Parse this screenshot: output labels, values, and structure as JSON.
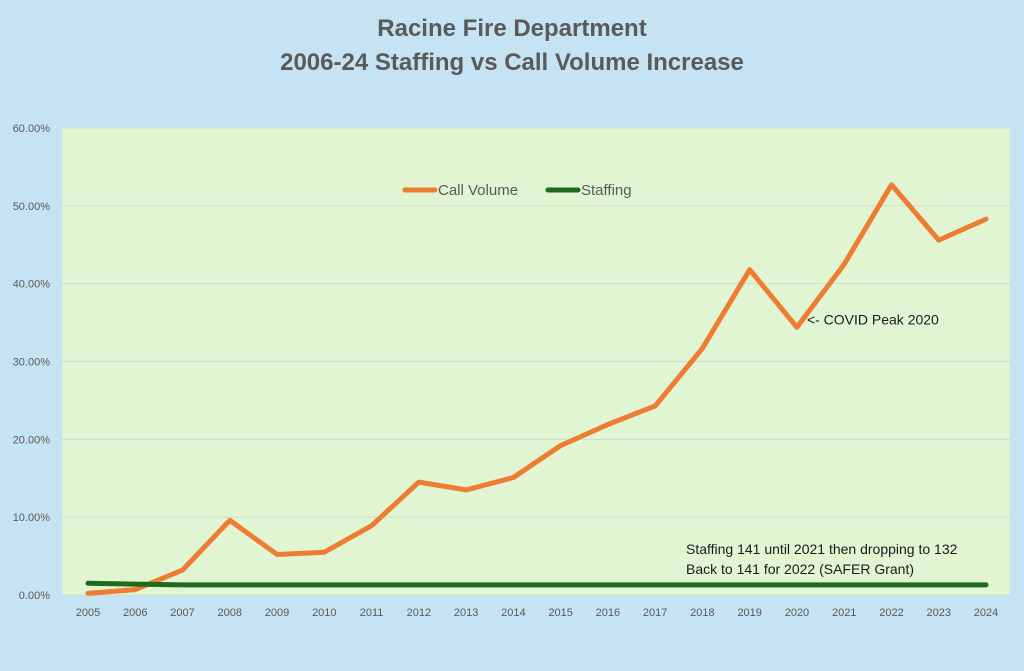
{
  "chart_data": {
    "type": "line",
    "title": "Racine Fire Department",
    "subtitle": "2006-24 Staffing vs Call Volume Increase",
    "x": [
      "2005",
      "2006",
      "2007",
      "2008",
      "2009",
      "2010",
      "2011",
      "2012",
      "2013",
      "2014",
      "2015",
      "2016",
      "2017",
      "2018",
      "2019",
      "2020",
      "2021",
      "2022",
      "2023",
      "2024"
    ],
    "series": [
      {
        "name": "Call Volume",
        "color": "#ed7d31",
        "values": [
          0.2,
          0.7,
          3.2,
          9.6,
          5.2,
          5.5,
          8.9,
          14.5,
          13.5,
          15.1,
          19.2,
          21.9,
          24.3,
          31.7,
          41.8,
          34.4,
          42.5,
          52.7,
          45.6,
          48.3
        ]
      },
      {
        "name": "Staffing",
        "color": "#1e6b1e",
        "values": [
          1.5,
          1.4,
          1.3,
          1.3,
          1.3,
          1.3,
          1.3,
          1.3,
          1.3,
          1.3,
          1.3,
          1.3,
          1.3,
          1.3,
          1.3,
          1.3,
          1.3,
          1.3,
          1.3,
          1.3
        ]
      }
    ],
    "y_ticks": [
      "0.00%",
      "10.00%",
      "20.00%",
      "30.00%",
      "40.00%",
      "50.00%",
      "60.00%"
    ],
    "ylim": [
      0,
      60
    ],
    "grid": true,
    "legend_position": "top-center",
    "annotations": [
      {
        "text": "<- COVID Peak 2020",
        "x": "2020",
        "y": 34.4
      },
      {
        "text": "Staffing 141 until 2021 then dropping to 132",
        "x": "2021",
        "y": 5.6
      },
      {
        "text": "Back to 141 for 2022 (SAFER Grant)",
        "x": "2021",
        "y": 3.1
      }
    ],
    "colors": {
      "plot_background": "#e2f5d3",
      "page_background": "#c5e3f3",
      "grid": "#d0dcc8"
    }
  }
}
